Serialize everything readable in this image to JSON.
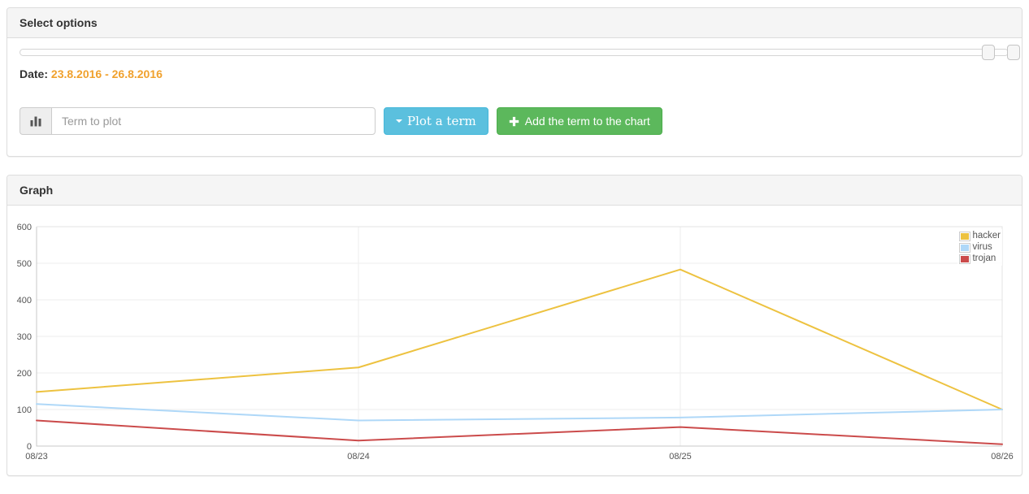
{
  "options_panel": {
    "title": "Select options",
    "date_label": "Date:",
    "date_value": "23.8.2016 - 26.8.2016",
    "term_input_placeholder": "Term to plot",
    "term_input_value": "",
    "plot_button_label": "Plot a term",
    "add_button_label": "Add the term to the chart"
  },
  "graph_panel": {
    "title": "Graph"
  },
  "colors": {
    "date_orange": "#f0a12d",
    "plot_button_blue": "#5bc0de",
    "add_button_green": "#5cb85c",
    "axis_text": "#545454",
    "gridline": "#ededed",
    "plot_border": "#c8c8c8"
  },
  "chart_data": {
    "type": "line",
    "x": [
      "08/23",
      "08/24",
      "08/25",
      "08/26"
    ],
    "series": [
      {
        "name": "hacker",
        "color": "#edc240",
        "values": [
          148,
          215,
          483,
          100
        ]
      },
      {
        "name": "virus",
        "color": "#afd8f8",
        "values": [
          115,
          70,
          78,
          100
        ]
      },
      {
        "name": "trojan",
        "color": "#cb4b4b",
        "values": [
          70,
          15,
          52,
          5
        ]
      }
    ],
    "ylim": [
      0,
      600
    ],
    "yticks": [
      0,
      100,
      200,
      300,
      400,
      500,
      600
    ],
    "ylabel": "",
    "xlabel": "",
    "title": "",
    "grid": true,
    "legend_position": "ne"
  }
}
